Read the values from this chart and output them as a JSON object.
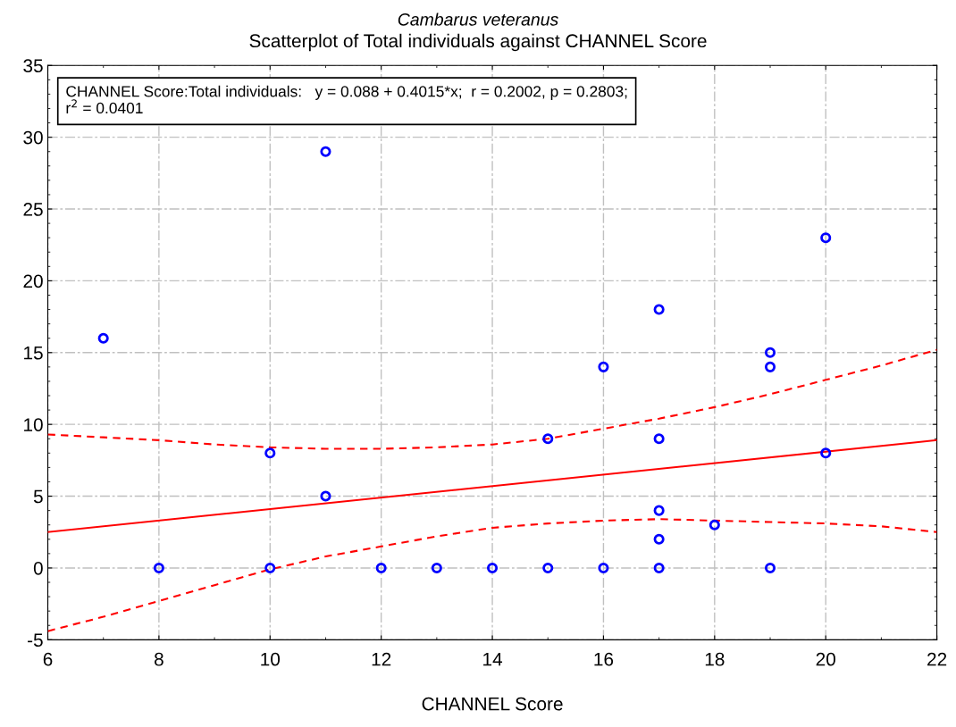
{
  "chart_data": {
    "type": "scatter",
    "title": "Cambarus veteranus",
    "subtitle": "Scatterplot of Total individuals against CHANNEL Score",
    "xlabel": "CHANNEL Score",
    "series": [
      {
        "color": "#0000ff",
        "marker": "circle",
        "x": [
          7,
          8,
          10,
          10,
          11,
          11,
          12,
          13,
          14,
          15,
          15,
          16,
          16,
          17,
          17,
          17,
          17,
          17,
          18,
          19,
          19,
          19,
          20,
          20
        ],
        "values": [
          16,
          0,
          8,
          0,
          29,
          5,
          0,
          0,
          0,
          9,
          0,
          14,
          0,
          18,
          9,
          4,
          2,
          0,
          3,
          15,
          14,
          0,
          23,
          8
        ]
      },
      {
        "type": "line",
        "color": "#ff0000",
        "line_style": "solid",
        "x": [
          6,
          22
        ],
        "values": [
          2.5,
          8.9
        ]
      },
      {
        "type": "line",
        "color": "#ff0000",
        "line_style": "dashed",
        "x": [
          6,
          7,
          8,
          9,
          10,
          11,
          12,
          13,
          14,
          15,
          16,
          17,
          18,
          19,
          20,
          21,
          22
        ],
        "values": [
          9.3,
          9.1,
          8.9,
          8.6,
          8.4,
          8.3,
          8.3,
          8.4,
          8.6,
          9.0,
          9.7,
          10.4,
          11.2,
          12.1,
          13.1,
          14.1,
          15.2
        ]
      },
      {
        "type": "line",
        "color": "#ff0000",
        "line_style": "dashed",
        "x": [
          6,
          7,
          8,
          9,
          10,
          11,
          12,
          13,
          14,
          15,
          16,
          17,
          18,
          19,
          20,
          21,
          22
        ],
        "values": [
          -4.4,
          -3.4,
          -2.3,
          -1.2,
          -0.1,
          0.8,
          1.5,
          2.2,
          2.8,
          3.1,
          3.3,
          3.4,
          3.3,
          3.2,
          3.1,
          2.9,
          2.5
        ]
      }
    ],
    "annotations": [
      "CHANNEL Score:Total individuals:   y = 0.088 + 0.4015*x;  r = 0.2002, p = 0.2803;\nr$^{2}$ = 0.0401"
    ],
    "xlim": [
      6,
      22
    ],
    "xticks": [
      6,
      8,
      10,
      12,
      14,
      16,
      18,
      20,
      22
    ],
    "ylim": [
      -5,
      35
    ],
    "yticks": [
      -5,
      0,
      5,
      10,
      15,
      20,
      25,
      30,
      35
    ],
    "grid": true,
    "legend": false
  }
}
